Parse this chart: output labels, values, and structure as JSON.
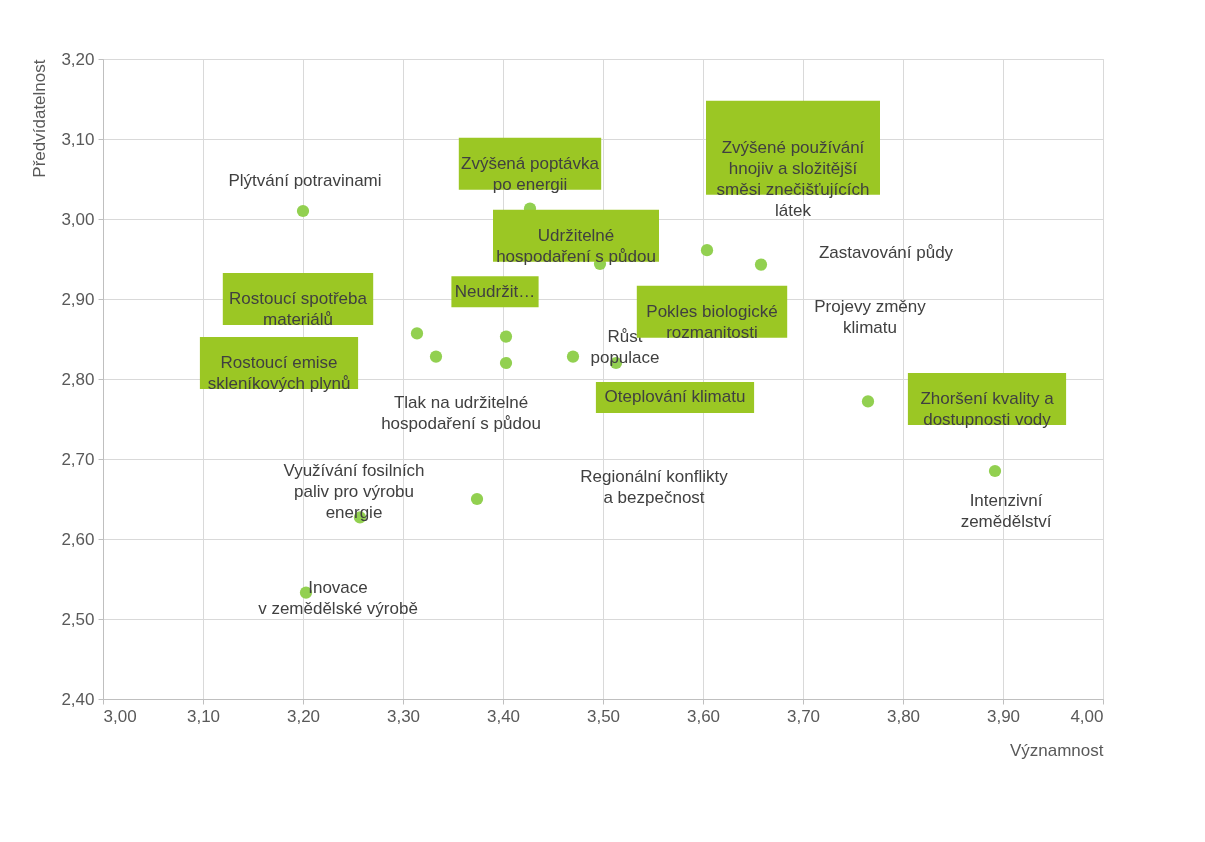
{
  "chart_data": {
    "type": "scatter",
    "xlabel": "Významnost",
    "ylabel": "Předvídatelnost",
    "x": [
      3.2,
      3.314,
      3.333,
      3.403,
      3.403,
      3.427,
      3.497,
      3.47,
      3.513,
      3.604,
      3.658,
      3.765,
      3.892,
      3.374,
      3.257,
      3.203
    ],
    "series": [
      {
        "color": "#92d050",
        "values": [
          3.01,
          2.857,
          2.828,
          2.853,
          2.82,
          3.013,
          2.944,
          2.828,
          2.82,
          2.961,
          2.943,
          2.772,
          2.685,
          2.65,
          2.627,
          2.533
        ]
      }
    ],
    "marker": "circle",
    "grid": true,
    "xlim": [
      3.0,
      4.0
    ],
    "ylim": [
      2.4,
      3.2
    ],
    "xticks": [
      {
        "value": 3.0,
        "label": "3,00"
      },
      {
        "value": 3.1,
        "label": "3,10"
      },
      {
        "value": 3.2,
        "label": "3,20"
      },
      {
        "value": 3.3,
        "label": "3,30"
      },
      {
        "value": 3.4,
        "label": "3,40"
      },
      {
        "value": 3.5,
        "label": "3,50"
      },
      {
        "value": 3.6,
        "label": "3,60"
      },
      {
        "value": 3.7,
        "label": "3,70"
      },
      {
        "value": 3.8,
        "label": "3,80"
      },
      {
        "value": 3.9,
        "label": "3,90"
      },
      {
        "value": 4.0,
        "label": "4,00"
      }
    ],
    "yticks": [
      {
        "value": 2.4,
        "label": "2,40"
      },
      {
        "value": 2.5,
        "label": "2,50"
      },
      {
        "value": 2.6,
        "label": "2,60"
      },
      {
        "value": 2.7,
        "label": "2,70"
      },
      {
        "value": 2.8,
        "label": "2,80"
      },
      {
        "value": 2.9,
        "label": "2,90"
      },
      {
        "value": 3.0,
        "label": "3,00"
      },
      {
        "value": 3.1,
        "label": "3,10"
      },
      {
        "value": 3.2,
        "label": "3,20"
      }
    ],
    "annotations": [
      "Plýtvání potravinami",
      "Zvýšená poptávka\npo energii",
      "Zvýšené používání\nhnojiv a složitější\nsměsi znečišťujících\nlátek",
      "Růst\npopulace",
      "Udržitelné\nhospodaření s půdou",
      "Zastavování půdy",
      "Rostoucí spotřeba\nmateriálů",
      "Neudržit…",
      "Projevy změny\nklimatu",
      "Pokles biologické\nrozmanitosti",
      "Rostoucí emise\nskleníkových plynů",
      "Tlak na udržitelné\nhospodaření s půdou",
      "Oteplování klimatu",
      "Zhoršení kvality a\ndostupnosti vody",
      "Využívání fosilních\npaliv pro výrobu\nenergie",
      "Regionální konflikty\na bezpečnost",
      "Intenzivní\nzemědělství",
      "Inovace\nv zemědělské výrobě"
    ]
  }
}
